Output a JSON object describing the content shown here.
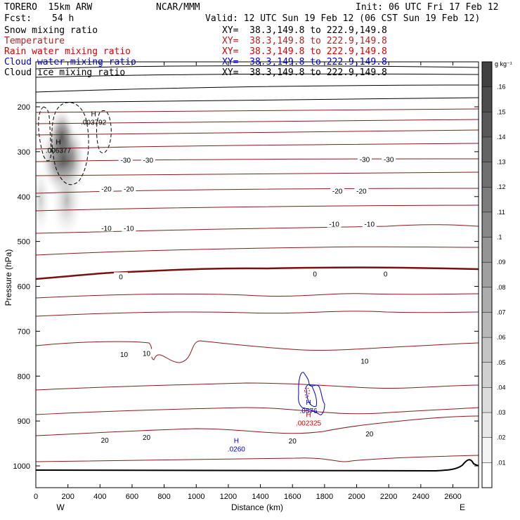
{
  "header": {
    "model": "TORERO  15km ARW",
    "org": "NCAR/MMM",
    "init": "Init: 06 UTC Fri 17 Feb 12",
    "fcst_label": "Fcst:",
    "fcst_value": "54 h",
    "valid": "Valid: 12 UTC Sun 19 Feb 12 (06 CST Sun 19 Feb 12)"
  },
  "legend": [
    {
      "field": "Snow mixing ratio",
      "xy": "XY=  38.3,149.8 to 222.9,149.8",
      "color": "#000000"
    },
    {
      "field": "Temperature",
      "xy": "XY=  38.3,149.8 to 222.9,149.8",
      "color": "#b22222"
    },
    {
      "field": "Rain water mixing ratio",
      "xy": "XY=  38.3,149.8 to 222.9,149.8",
      "color": "#dd0000"
    },
    {
      "field": "Cloud water mixing ratio",
      "xy": "XY=  38.3,149.8 to 222.9,149.8",
      "color": "#0000cc"
    },
    {
      "field": "Cloud ice mixing ratio",
      "xy": "XY=  38.3,149.8 to 222.9,149.8",
      "color": "#000000"
    }
  ],
  "chart_data": {
    "type": "cross-section",
    "xlabel": "Distance (km)",
    "ylabel": "Pressure (hPa)",
    "xlim": [
      0,
      2760
    ],
    "ylim": [
      1050,
      100
    ],
    "xticks": [
      0,
      200,
      400,
      600,
      800,
      1000,
      1200,
      1400,
      1600,
      1800,
      2000,
      2200,
      2400,
      2600
    ],
    "yticks": [
      200,
      300,
      400,
      500,
      600,
      700,
      800,
      900,
      1000
    ],
    "endpoint_labels": {
      "left": "W",
      "right": "E"
    },
    "colorbar": {
      "unit": "g kg⁻¹",
      "ticks": [
        ".01",
        ".02",
        ".03",
        ".04",
        ".05",
        ".06",
        ".07",
        ".08",
        ".09",
        ".1",
        ".11",
        ".12",
        ".13",
        ".14",
        ".15",
        ".16"
      ],
      "colors": [
        "#ffffff",
        "#f4f4f4",
        "#e8e8e8",
        "#dcdcdc",
        "#d0d0d0",
        "#c4c4c4",
        "#b8b8b8",
        "#acacac",
        "#a0a0a0",
        "#949494",
        "#888888",
        "#7c7c7c",
        "#707070",
        "#646464",
        "#585858",
        "#4c4c4c",
        "#404040"
      ]
    },
    "temperature_labels": [
      {
        "text": "-30",
        "x": 560,
        "p": 318
      },
      {
        "text": "-30",
        "x": 700,
        "p": 318
      },
      {
        "text": "-30",
        "x": 2050,
        "p": 317
      },
      {
        "text": "-30",
        "x": 2200,
        "p": 317
      },
      {
        "text": "-20",
        "x": 440,
        "p": 382
      },
      {
        "text": "-20",
        "x": 580,
        "p": 382
      },
      {
        "text": "-20",
        "x": 1880,
        "p": 387
      },
      {
        "text": "-20",
        "x": 2030,
        "p": 387
      },
      {
        "text": "-10",
        "x": 440,
        "p": 470
      },
      {
        "text": "-10",
        "x": 580,
        "p": 470
      },
      {
        "text": "-10",
        "x": 1860,
        "p": 461
      },
      {
        "text": "-10",
        "x": 2080,
        "p": 461
      },
      {
        "text": "0",
        "x": 530,
        "p": 578
      },
      {
        "text": "0",
        "x": 1740,
        "p": 572
      },
      {
        "text": "0",
        "x": 2180,
        "p": 572
      },
      {
        "text": "10",
        "x": 550,
        "p": 751
      },
      {
        "text": "10",
        "x": 690,
        "p": 749
      },
      {
        "text": "10",
        "x": 2050,
        "p": 766
      },
      {
        "text": "20",
        "x": 430,
        "p": 942
      },
      {
        "text": "20",
        "x": 690,
        "p": 936
      },
      {
        "text": "20",
        "x": 1600,
        "p": 944
      },
      {
        "text": "20",
        "x": 2080,
        "p": 928
      }
    ],
    "extrema_labels": [
      {
        "mark": "H",
        "value": ".003792",
        "x": 360,
        "p": 224,
        "color": "#000000"
      },
      {
        "mark": "H",
        "value": ".006377",
        "x": 140,
        "p": 287,
        "color": "#000000"
      },
      {
        "mark": "H",
        "value": ".0260",
        "x": 1250,
        "p": 952,
        "color": "#0000cc"
      },
      {
        "mark": "H",
        "value": ".0576",
        "x": 1700,
        "p": 867,
        "color": "#0000cc"
      },
      {
        "mark": "H",
        "value": ".002325",
        "x": 1700,
        "p": 894,
        "color": "#dd0000"
      }
    ]
  }
}
